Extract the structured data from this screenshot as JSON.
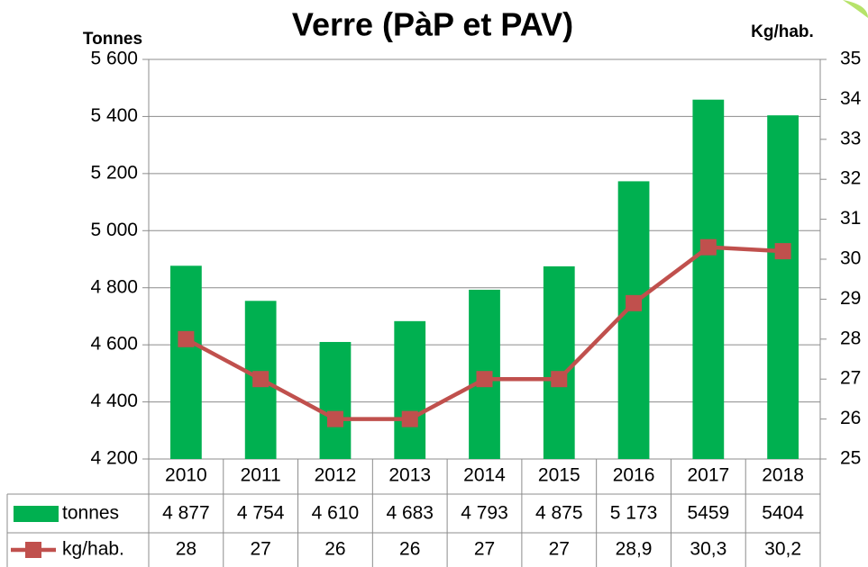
{
  "chart_data": {
    "type": "bar-line",
    "title": "Verre (PàP et PAV)",
    "y_label": "Tonnes",
    "y2_label": "Kg/hab.",
    "categories": [
      "2010",
      "2011",
      "2012",
      "2013",
      "2014",
      "2015",
      "2016",
      "2017",
      "2018"
    ],
    "series": [
      {
        "name": "tonnes",
        "type": "bar",
        "color": "#00b050",
        "values": [
          4877,
          4754,
          4610,
          4683,
          4793,
          4875,
          5173,
          5459,
          5404
        ],
        "value_labels": [
          "4 877",
          "4 754",
          "4 610",
          "4 683",
          "4 793",
          "4 875",
          "5 173",
          "5459",
          "5404"
        ]
      },
      {
        "name": "kg/hab.",
        "type": "line",
        "axis": "y2",
        "color": "#c0504d",
        "values": [
          28,
          27,
          26,
          26,
          27,
          27,
          28.9,
          30.3,
          30.2
        ],
        "value_labels": [
          "28",
          "27",
          "26",
          "26",
          "27",
          "27",
          "28,9",
          "30,3",
          "30,2"
        ]
      }
    ],
    "ylim": [
      4200,
      5600
    ],
    "yticks": [
      {
        "value": 4200,
        "label": "4 200"
      },
      {
        "value": 4400,
        "label": "4 400"
      },
      {
        "value": 4600,
        "label": "4 600"
      },
      {
        "value": 4800,
        "label": "4 800"
      },
      {
        "value": 5000,
        "label": "5 000"
      },
      {
        "value": 5200,
        "label": "5 200"
      },
      {
        "value": 5400,
        "label": "5 400"
      },
      {
        "value": 5600,
        "label": "5 600"
      }
    ],
    "y2lim": [
      25,
      35
    ],
    "y2ticks": [
      25,
      26,
      27,
      28,
      29,
      30,
      31,
      32,
      33,
      34,
      35
    ],
    "grid": true
  }
}
